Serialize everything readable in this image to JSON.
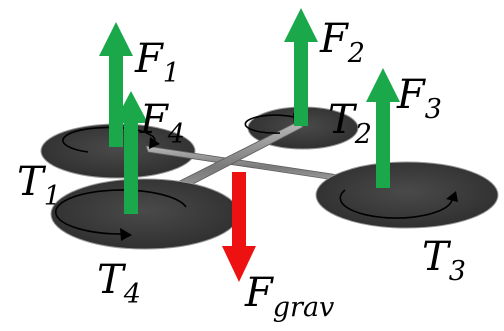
{
  "labels": {
    "f1": {
      "main": "F",
      "sub": "1"
    },
    "f2": {
      "main": "F",
      "sub": "2"
    },
    "f3": {
      "main": "F",
      "sub": "3"
    },
    "f4": {
      "main": "F",
      "sub": "4"
    },
    "t1": {
      "main": "T",
      "sub": "1"
    },
    "t2": {
      "main": "T",
      "sub": "2"
    },
    "t3": {
      "main": "T",
      "sub": "3"
    },
    "t4": {
      "main": "T",
      "sub": "4"
    },
    "fgrav": {
      "main": "F",
      "sub": "grav"
    }
  },
  "colors": {
    "thrust_arrow": "#1aa84a",
    "gravity_arrow": "#ee1111",
    "rotor_disk": "#3a3a3a",
    "frame": "#8a8a8a",
    "rotation_arrow": "#000000"
  },
  "icons": {
    "rotation": "circular-arrow",
    "thrust": "up-arrow",
    "gravity": "down-arrow"
  }
}
